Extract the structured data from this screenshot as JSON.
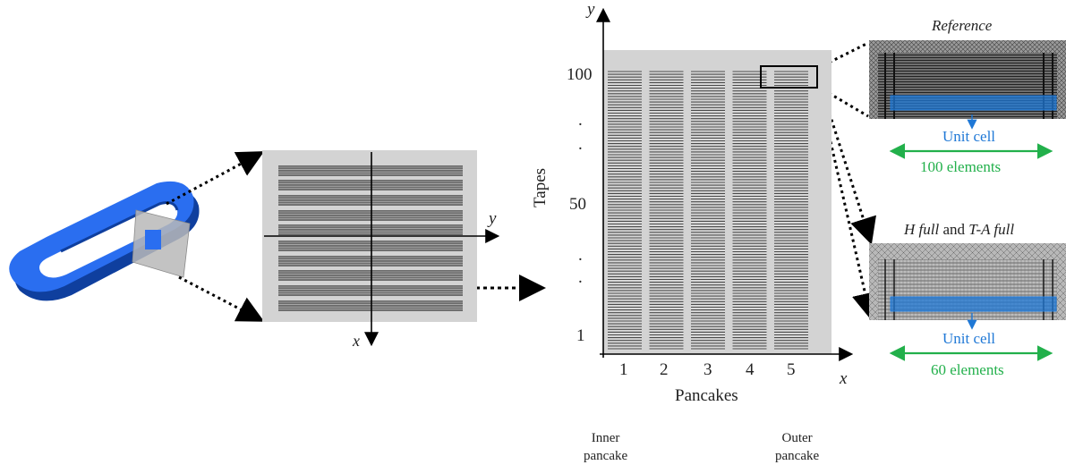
{
  "section": {
    "axis_y": "y",
    "axis_x": "x"
  },
  "pancake_plot": {
    "axis_y": "y",
    "axis_x": "x",
    "ylabel": "Tapes",
    "xlabel": "Pancakes",
    "y_ticks": [
      "100",
      ".",
      ".",
      "50",
      ".",
      ".",
      "1"
    ],
    "x_ticks": [
      "1",
      "2",
      "3",
      "4",
      "5"
    ],
    "inner_label": "Inner\npancake",
    "outer_label": "Outer\npancake"
  },
  "reference_panel": {
    "title": "Reference",
    "unit_cell": "Unit cell",
    "elements": "100 elements"
  },
  "full_panel": {
    "title_a": "H full",
    "title_and": " and ",
    "title_b": "T-A full",
    "unit_cell": "Unit cell",
    "elements": "60 elements"
  },
  "colors": {
    "coil_blue": "#1e5fe0",
    "unit_cell_blue": "#1f78d6",
    "elements_green": "#22b04b",
    "panel_gray": "#d3d3d3",
    "tape_dark": "#4a4a4a"
  }
}
